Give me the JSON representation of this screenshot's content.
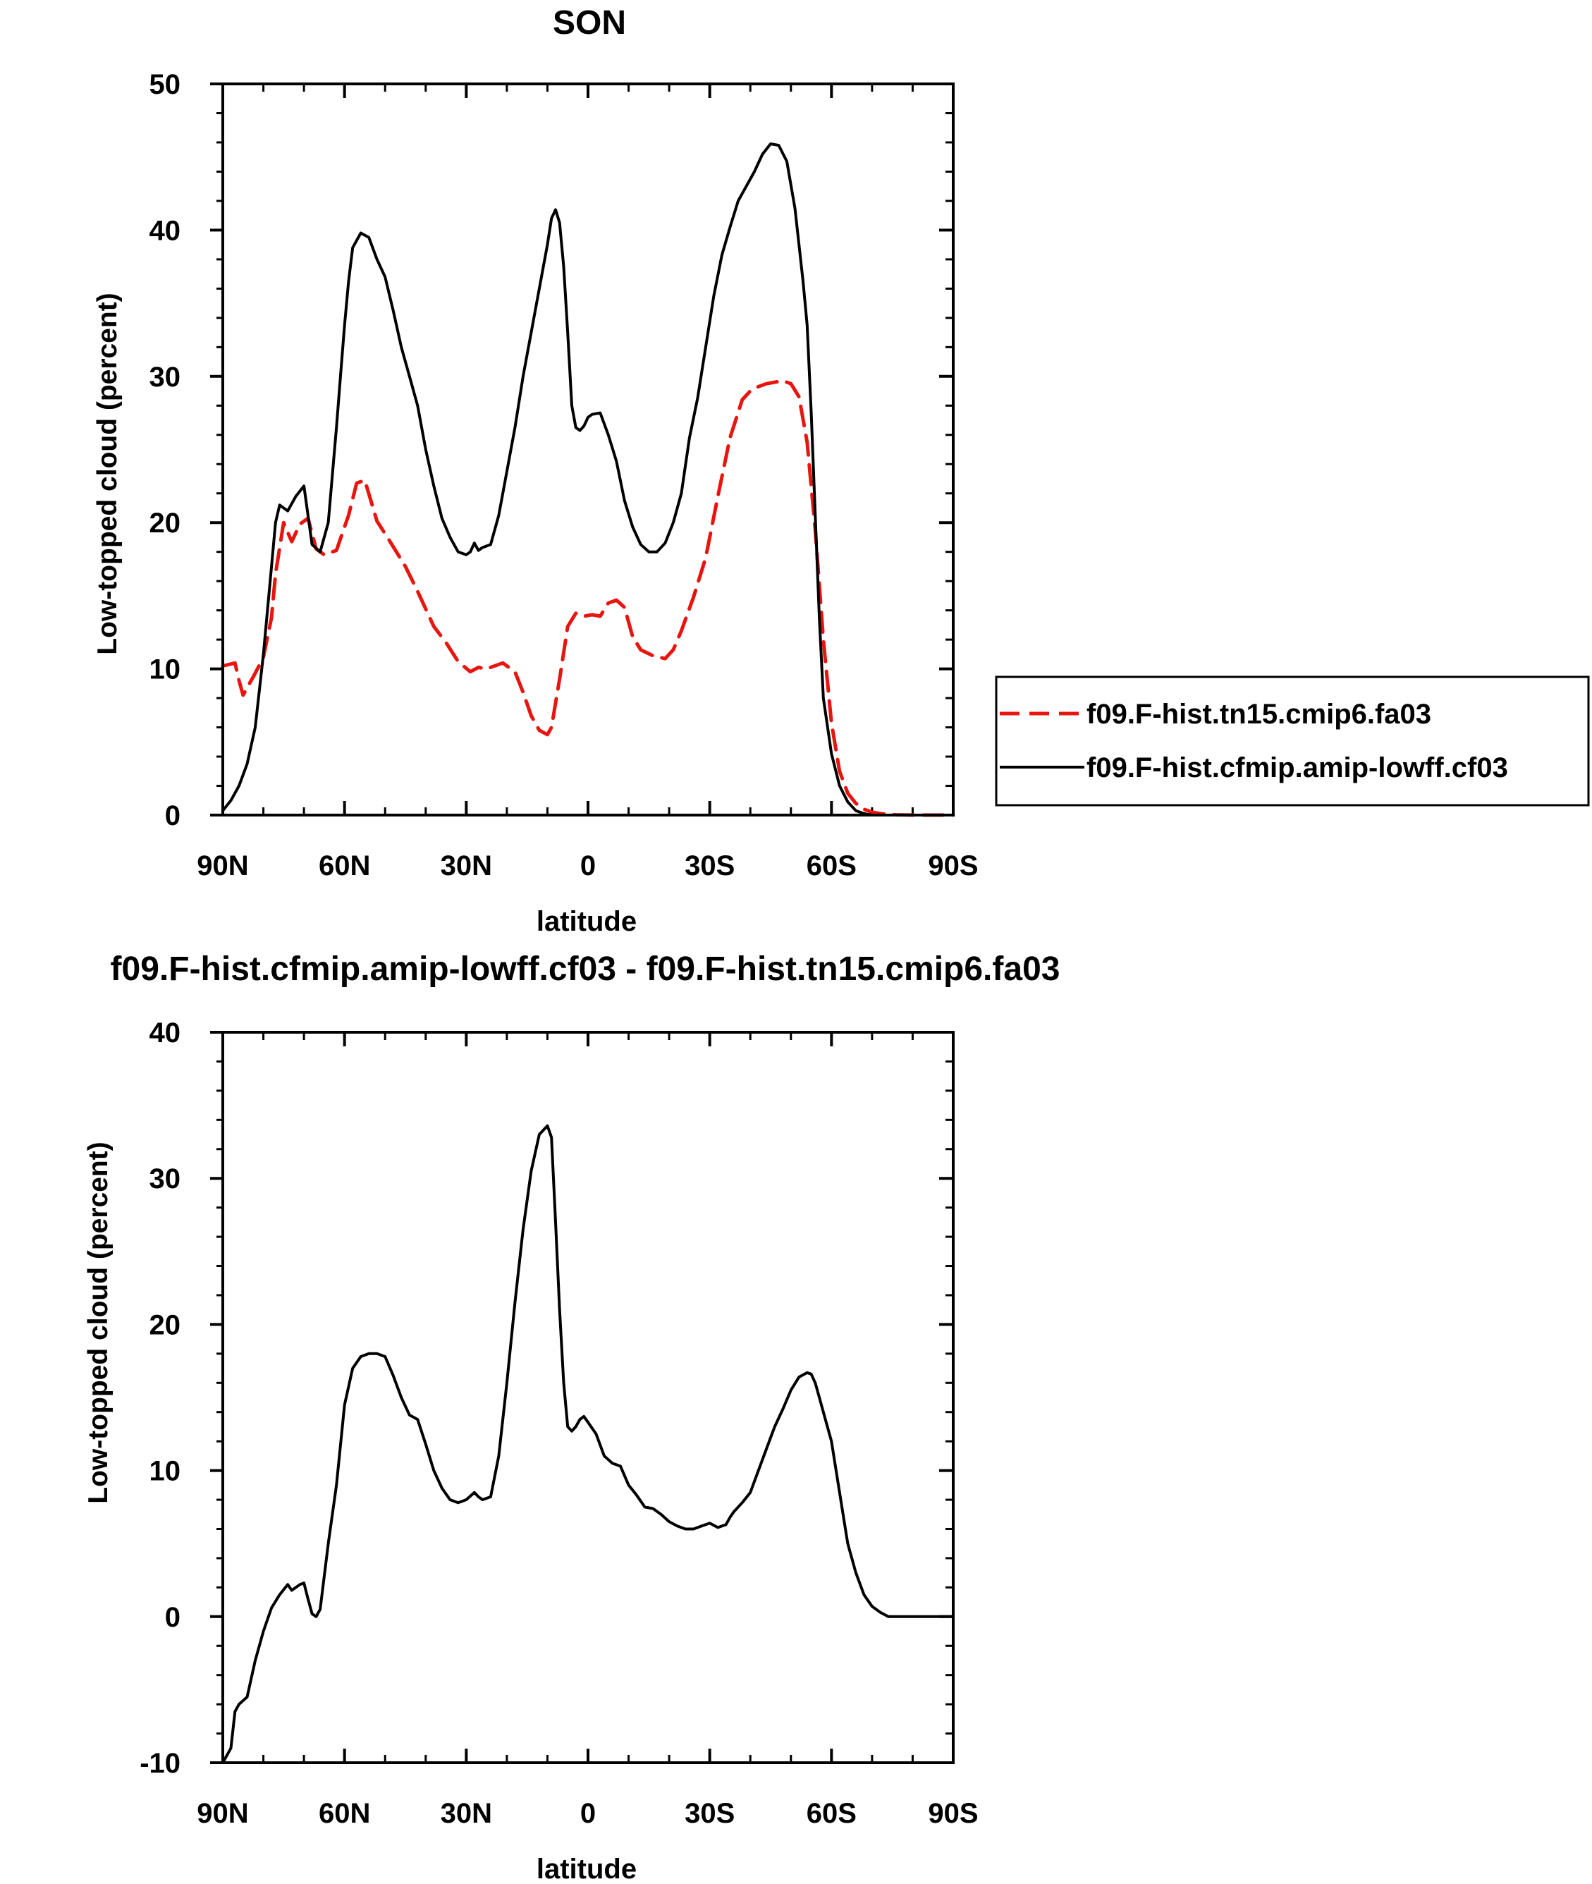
{
  "chart_data": [
    {
      "type": "line",
      "title": "SON",
      "xlabel": "latitude",
      "ylabel": "Low-topped cloud (percent)",
      "x_unit": "degrees latitude (positive = North)",
      "xlim": [
        90,
        -90
      ],
      "ylim": [
        0,
        50
      ],
      "x_ticks": [
        "90N",
        "60N",
        "30N",
        "0",
        "30S",
        "60S",
        "90S"
      ],
      "y_ticks": [
        "0",
        "10",
        "20",
        "30",
        "40",
        "50"
      ],
      "grid": false,
      "legend": {
        "placement": "right",
        "entries": [
          "f09.F-hist.tn15.cmip6.fa03",
          "f09.F-hist.cfmip.amip-lowff.cf03"
        ]
      },
      "series": [
        {
          "name": "f09.F-hist.tn15.cmip6.fa03",
          "color": "#e8150f",
          "style": "dashed",
          "x": [
            90,
            87,
            86,
            85,
            82,
            80,
            78,
            77,
            75,
            73,
            71,
            69,
            67,
            65,
            62,
            59,
            57,
            55,
            52,
            49,
            45,
            42,
            38,
            35,
            32,
            29,
            27,
            25,
            21,
            18,
            16,
            14,
            12,
            10,
            9,
            7,
            5,
            3,
            1,
            -1,
            -3,
            -5,
            -7,
            -9,
            -11,
            -13,
            -16,
            -19,
            -21,
            -23,
            -26,
            -29,
            -32,
            -35,
            -38,
            -40,
            -42,
            -44,
            -46,
            -48,
            -50,
            -52,
            -54,
            -56,
            -58,
            -60,
            -62,
            -64,
            -66,
            -68,
            -70,
            -72,
            -74,
            -76,
            -78,
            -80,
            -82,
            -85,
            -90
          ],
          "y": [
            10.2,
            10.4,
            9.2,
            8.2,
            9.7,
            10.8,
            13.5,
            16.5,
            20,
            18.7,
            19.9,
            20.3,
            18.2,
            17.8,
            18.1,
            20.5,
            22.7,
            22.9,
            20.1,
            18.8,
            17.0,
            15.3,
            12.9,
            11.8,
            10.5,
            9.8,
            10.1,
            10.0,
            10.4,
            9.8,
            8.4,
            6.8,
            5.8,
            5.5,
            6.0,
            9.3,
            12.9,
            13.8,
            13.6,
            13.7,
            13.6,
            14.5,
            14.7,
            14.2,
            12.2,
            11.3,
            10.9,
            10.7,
            11.3,
            12.6,
            14.9,
            17.6,
            21.8,
            25.8,
            28.4,
            29.0,
            29.3,
            29.5,
            29.6,
            29.7,
            29.5,
            28.6,
            25.5,
            19.5,
            12.0,
            6.3,
            3.0,
            1.5,
            0.8,
            0.4,
            0.2,
            0.1,
            0.05,
            0.02,
            0.01,
            0,
            0,
            0,
            0
          ]
        },
        {
          "name": "f09.F-hist.cfmip.amip-lowff.cf03",
          "color": "#000000",
          "style": "solid",
          "x": [
            90,
            88,
            86,
            84,
            82,
            80,
            78,
            77,
            76,
            74,
            72,
            70,
            68,
            66,
            64,
            62,
            61,
            60,
            59,
            58,
            56,
            54,
            52,
            50,
            48,
            46,
            44,
            42,
            40,
            38,
            36,
            34,
            32,
            30,
            29,
            28,
            27,
            26,
            24,
            22,
            20,
            18,
            16,
            14,
            12,
            10,
            9,
            8,
            7,
            6,
            5,
            4,
            3,
            2,
            1,
            0,
            -1,
            -3,
            -5,
            -7,
            -9,
            -11,
            -13,
            -15,
            -17,
            -19,
            -21,
            -23,
            -25,
            -27,
            -29,
            -31,
            -33,
            -35,
            -37,
            -39,
            -41,
            -43,
            -45,
            -47,
            -49,
            -51,
            -53,
            -54,
            -55,
            -56,
            -57,
            -58,
            -60,
            -62,
            -64,
            -66,
            -68,
            -70,
            -72,
            -74,
            -76,
            -78,
            -80,
            -82,
            -84,
            -86,
            -90
          ],
          "y": [
            0.3,
            1.0,
            2.0,
            3.5,
            6.0,
            11.0,
            17.0,
            20.0,
            21.2,
            20.8,
            21.8,
            22.5,
            18.5,
            18.0,
            20.0,
            26.5,
            30.0,
            33.5,
            36.5,
            38.8,
            39.8,
            39.5,
            38.0,
            36.8,
            34.5,
            32.0,
            30.0,
            28.0,
            25.0,
            22.5,
            20.3,
            19.0,
            18.0,
            17.8,
            18.0,
            18.6,
            18.1,
            18.3,
            18.5,
            20.5,
            23.5,
            26.5,
            30.0,
            33.0,
            36.0,
            39.0,
            40.8,
            41.4,
            40.5,
            37.5,
            33.0,
            28.0,
            26.5,
            26.3,
            26.6,
            27.2,
            27.4,
            27.5,
            26.0,
            24.2,
            21.5,
            19.7,
            18.5,
            18.0,
            18.0,
            18.6,
            20.0,
            22.0,
            25.8,
            28.5,
            32.0,
            35.5,
            38.3,
            40.2,
            42.0,
            43.0,
            44.0,
            45.2,
            45.9,
            45.8,
            44.7,
            41.5,
            36.5,
            33.5,
            27.5,
            20.5,
            13.5,
            8.0,
            4.2,
            2.0,
            0.9,
            0.3,
            0.1,
            0,
            0,
            0,
            0,
            0,
            0,
            0,
            0,
            0,
            0
          ]
        }
      ]
    },
    {
      "type": "line",
      "title": "f09.F-hist.cfmip.amip-lowff.cf03 - f09.F-hist.tn15.cmip6.fa03",
      "xlabel": "latitude",
      "ylabel": "Low-topped cloud (percent)",
      "x_unit": "degrees latitude (positive = North)",
      "xlim": [
        90,
        -90
      ],
      "ylim": [
        -10,
        40
      ],
      "x_ticks": [
        "90N",
        "60N",
        "30N",
        "0",
        "30S",
        "60S",
        "90S"
      ],
      "y_ticks": [
        "-10",
        "0",
        "10",
        "20",
        "30",
        "40"
      ],
      "grid": false,
      "series": [
        {
          "color": "#000000",
          "style": "solid",
          "x": [
            90,
            88,
            87,
            86,
            84,
            82,
            80,
            78,
            76,
            74,
            73,
            72,
            71,
            70,
            69,
            68,
            67,
            66,
            64,
            62,
            60,
            58,
            56,
            54,
            52,
            50,
            48,
            46,
            44,
            42,
            40,
            38,
            36,
            34,
            32,
            30,
            28,
            27,
            26,
            24,
            22,
            20,
            18,
            16,
            14,
            12,
            10,
            9,
            8,
            7,
            6,
            5,
            4,
            3,
            2,
            1,
            0,
            -2,
            -4,
            -6,
            -8,
            -10,
            -12,
            -14,
            -16,
            -18,
            -20,
            -22,
            -24,
            -26,
            -28,
            -30,
            -32,
            -34,
            -35,
            -36,
            -38,
            -40,
            -42,
            -44,
            -46,
            -48,
            -50,
            -52,
            -54,
            -55,
            -56,
            -57,
            -58,
            -60,
            -62,
            -64,
            -66,
            -68,
            -70,
            -72,
            -74,
            -76,
            -78,
            -80,
            -84,
            -90
          ],
          "y": [
            -10,
            -9.0,
            -6.5,
            -6.0,
            -5.5,
            -3.0,
            -1.0,
            0.6,
            1.5,
            2.2,
            1.8,
            2.0,
            2.2,
            2.3,
            1.2,
            0.2,
            0.0,
            0.5,
            5.0,
            9.0,
            14.5,
            17.0,
            17.8,
            18.0,
            18.0,
            17.8,
            16.5,
            15.0,
            13.8,
            13.5,
            11.8,
            10.0,
            8.8,
            8.0,
            7.8,
            8.0,
            8.5,
            8.2,
            8.0,
            8.2,
            11.0,
            16.0,
            21.5,
            26.5,
            30.5,
            33.0,
            33.6,
            32.8,
            27.0,
            21.0,
            16.0,
            13.0,
            12.7,
            13.0,
            13.5,
            13.7,
            13.3,
            12.5,
            11.0,
            10.5,
            10.3,
            9.0,
            8.3,
            7.5,
            7.4,
            7.0,
            6.5,
            6.2,
            6.0,
            6.0,
            6.2,
            6.4,
            6.1,
            6.3,
            6.8,
            7.2,
            7.8,
            8.5,
            10.0,
            11.5,
            13.0,
            14.2,
            15.5,
            16.4,
            16.7,
            16.6,
            16.0,
            15.0,
            14.0,
            12.0,
            8.5,
            5.0,
            3.0,
            1.5,
            0.7,
            0.3,
            0.0,
            0,
            0,
            0,
            0,
            0
          ]
        }
      ]
    }
  ]
}
